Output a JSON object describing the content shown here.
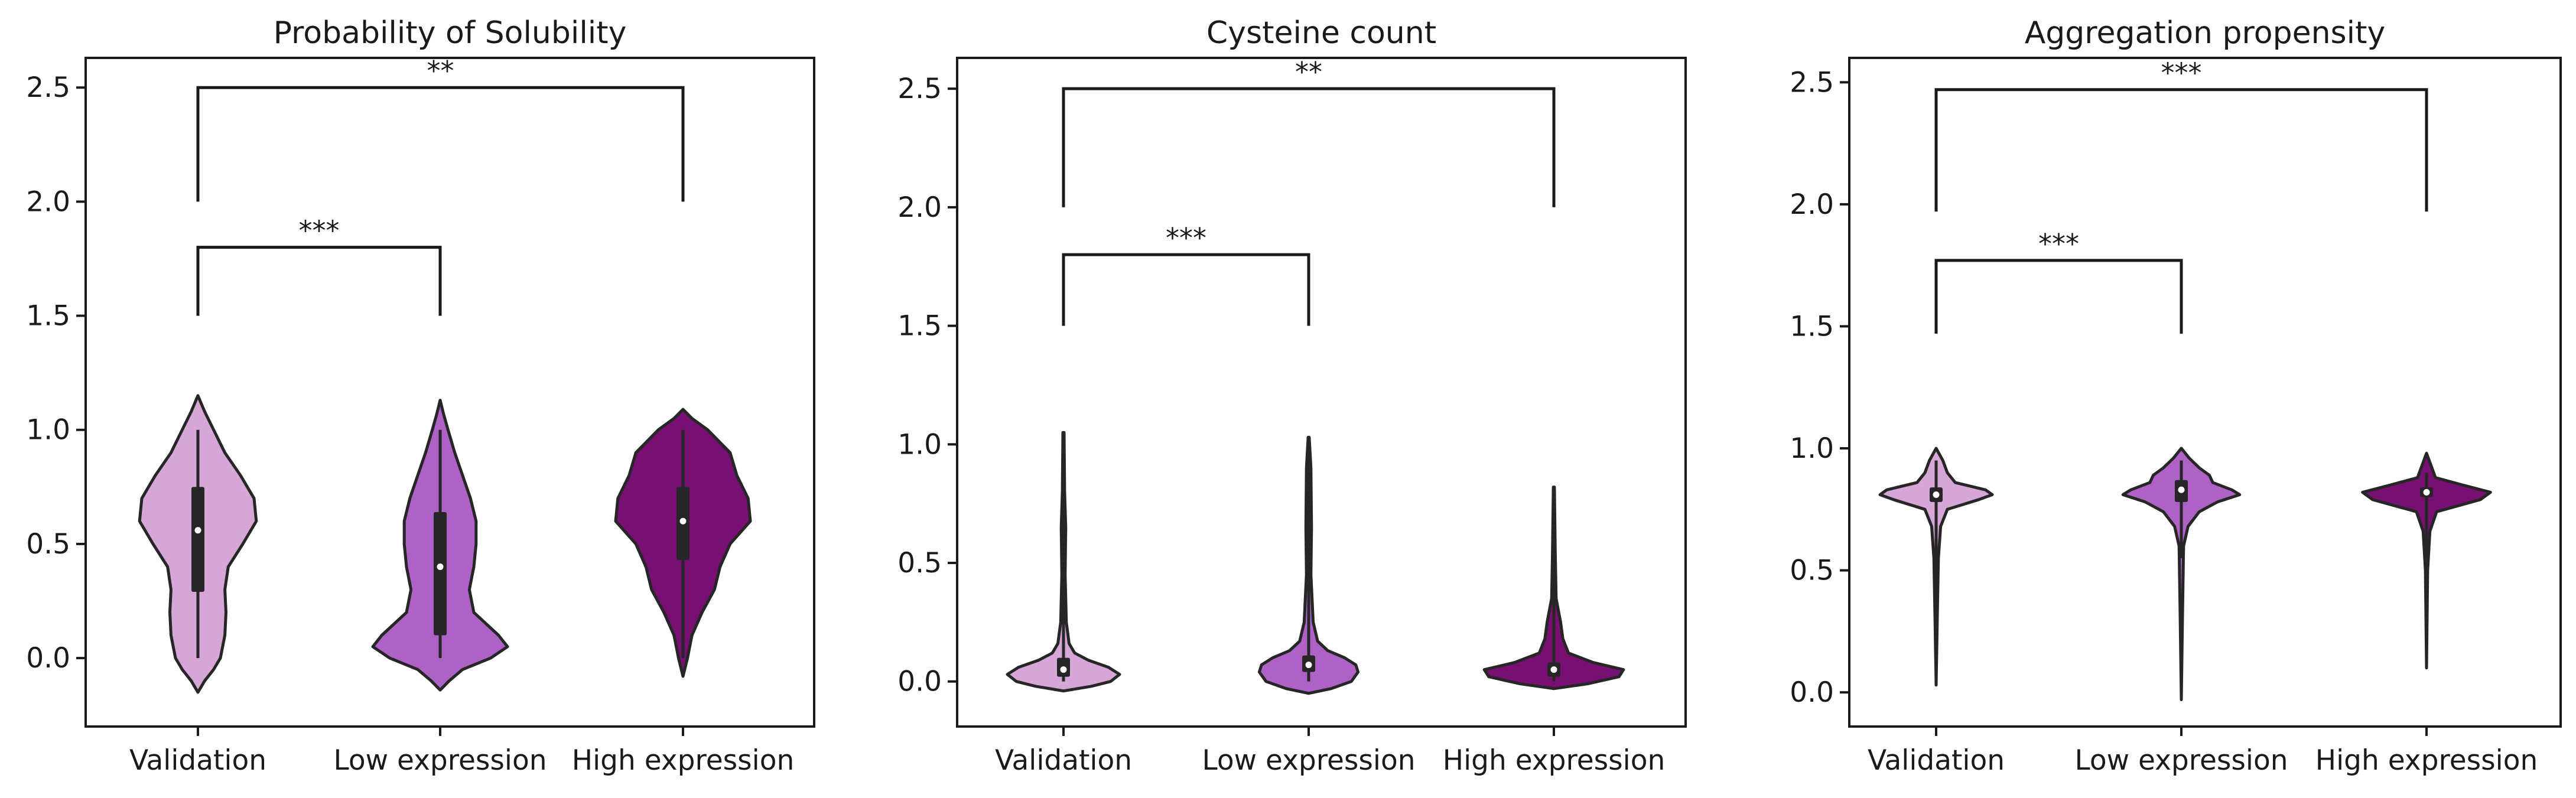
{
  "colors": {
    "validation": "#d6a6d6",
    "low_expression": "#ae62c6",
    "high_expression": "#780f72",
    "outline": "#262626",
    "box": "#262626",
    "median": "#ffffff"
  },
  "chart_data": [
    {
      "type": "violin",
      "title": "Probability of Solubility",
      "categories": [
        "Validation",
        "Low expression",
        "High expression"
      ],
      "yticks": [
        "0.0",
        "0.5",
        "1.0",
        "1.5",
        "2.0",
        "2.5"
      ],
      "ylim": [
        -0.3,
        2.63
      ],
      "grid": false,
      "series": [
        {
          "category": "Validation",
          "min": -0.15,
          "max": 1.15,
          "q1": 0.29,
          "median": 0.56,
          "q3": 0.75,
          "whisker_low": 0.0,
          "whisker_high": 1.0,
          "profile": [
            [
              -0.15,
              0.0
            ],
            [
              -0.1,
              0.06
            ],
            [
              -0.05,
              0.14
            ],
            [
              0.0,
              0.2
            ],
            [
              0.1,
              0.24
            ],
            [
              0.2,
              0.25
            ],
            [
              0.3,
              0.24
            ],
            [
              0.4,
              0.27
            ],
            [
              0.5,
              0.4
            ],
            [
              0.6,
              0.52
            ],
            [
              0.7,
              0.5
            ],
            [
              0.8,
              0.38
            ],
            [
              0.9,
              0.24
            ],
            [
              1.0,
              0.14
            ],
            [
              1.08,
              0.06
            ],
            [
              1.15,
              0.0
            ]
          ]
        },
        {
          "category": "Low expression",
          "min": -0.14,
          "max": 1.13,
          "q1": 0.1,
          "median": 0.4,
          "q3": 0.64,
          "whisker_low": 0.0,
          "whisker_high": 1.0,
          "profile": [
            [
              -0.14,
              0.0
            ],
            [
              -0.1,
              0.08
            ],
            [
              -0.05,
              0.2
            ],
            [
              0.0,
              0.45
            ],
            [
              0.05,
              0.6
            ],
            [
              0.1,
              0.52
            ],
            [
              0.2,
              0.3
            ],
            [
              0.3,
              0.26
            ],
            [
              0.4,
              0.3
            ],
            [
              0.5,
              0.32
            ],
            [
              0.6,
              0.32
            ],
            [
              0.7,
              0.27
            ],
            [
              0.8,
              0.2
            ],
            [
              0.9,
              0.13
            ],
            [
              1.0,
              0.07
            ],
            [
              1.07,
              0.03
            ],
            [
              1.13,
              0.0
            ]
          ]
        },
        {
          "category": "High expression",
          "min": -0.08,
          "max": 1.09,
          "q1": 0.43,
          "median": 0.6,
          "q3": 0.75,
          "whisker_low": 0.0,
          "whisker_high": 1.0,
          "profile": [
            [
              -0.08,
              0.0
            ],
            [
              0.0,
              0.04
            ],
            [
              0.1,
              0.08
            ],
            [
              0.2,
              0.17
            ],
            [
              0.3,
              0.28
            ],
            [
              0.4,
              0.33
            ],
            [
              0.5,
              0.42
            ],
            [
              0.6,
              0.6
            ],
            [
              0.7,
              0.58
            ],
            [
              0.8,
              0.48
            ],
            [
              0.9,
              0.42
            ],
            [
              1.0,
              0.22
            ],
            [
              1.05,
              0.08
            ],
            [
              1.09,
              0.0
            ]
          ]
        }
      ],
      "brackets": [
        {
          "from": 0,
          "to": 1,
          "y_low": 1.5,
          "y_top": 1.8,
          "label": "***"
        },
        {
          "from": 0,
          "to": 2,
          "y_low": 2.0,
          "y_top": 2.5,
          "label": "**"
        }
      ]
    },
    {
      "type": "violin",
      "title": "Cysteine count",
      "categories": [
        "Validation",
        "Low expression",
        "High expression"
      ],
      "yticks": [
        "0.0",
        "0.5",
        "1.0",
        "1.5",
        "2.0",
        "2.5"
      ],
      "ylim": [
        -0.19,
        2.63
      ],
      "grid": false,
      "series": [
        {
          "category": "Validation",
          "min": -0.04,
          "max": 1.05,
          "q1": 0.02,
          "median": 0.05,
          "q3": 0.1,
          "whisker_low": 0.0,
          "whisker_high": 1.0,
          "profile": [
            [
              -0.04,
              0.0
            ],
            [
              -0.02,
              0.25
            ],
            [
              0.0,
              0.42
            ],
            [
              0.03,
              0.5
            ],
            [
              0.06,
              0.4
            ],
            [
              0.09,
              0.22
            ],
            [
              0.12,
              0.1
            ],
            [
              0.16,
              0.05
            ],
            [
              0.25,
              0.025
            ],
            [
              0.45,
              0.015
            ],
            [
              0.65,
              0.02
            ],
            [
              0.8,
              0.01
            ],
            [
              1.05,
              0.005
            ]
          ]
        },
        {
          "category": "Low expression",
          "min": -0.05,
          "max": 1.03,
          "q1": 0.04,
          "median": 0.07,
          "q3": 0.11,
          "whisker_low": 0.0,
          "whisker_high": 1.0,
          "profile": [
            [
              -0.05,
              0.0
            ],
            [
              -0.03,
              0.2
            ],
            [
              0.0,
              0.38
            ],
            [
              0.04,
              0.44
            ],
            [
              0.07,
              0.42
            ],
            [
              0.1,
              0.32
            ],
            [
              0.13,
              0.17
            ],
            [
              0.17,
              0.08
            ],
            [
              0.25,
              0.04
            ],
            [
              0.45,
              0.02
            ],
            [
              0.65,
              0.025
            ],
            [
              0.9,
              0.02
            ],
            [
              1.03,
              0.005
            ]
          ]
        },
        {
          "category": "High expression",
          "min": -0.03,
          "max": 0.82,
          "q1": 0.02,
          "median": 0.05,
          "q3": 0.08,
          "whisker_low": 0.0,
          "whisker_high": 0.8,
          "profile": [
            [
              -0.03,
              0.0
            ],
            [
              -0.01,
              0.3
            ],
            [
              0.02,
              0.58
            ],
            [
              0.05,
              0.62
            ],
            [
              0.08,
              0.35
            ],
            [
              0.12,
              0.13
            ],
            [
              0.18,
              0.08
            ],
            [
              0.25,
              0.06
            ],
            [
              0.35,
              0.02
            ],
            [
              0.55,
              0.012
            ],
            [
              0.82,
              0.005
            ]
          ]
        }
      ],
      "brackets": [
        {
          "from": 0,
          "to": 1,
          "y_low": 1.5,
          "y_top": 1.8,
          "label": "***"
        },
        {
          "from": 0,
          "to": 2,
          "y_low": 2.0,
          "y_top": 2.5,
          "label": "**"
        }
      ]
    },
    {
      "type": "violin",
      "title": "Aggregation propensity",
      "categories": [
        "Validation",
        "Low expression",
        "High expression"
      ],
      "yticks": [
        "0.0",
        "0.5",
        "1.0",
        "1.5",
        "2.0",
        "2.5"
      ],
      "ylim": [
        -0.14,
        2.6
      ],
      "grid": false,
      "series": [
        {
          "category": "Validation",
          "min": 0.03,
          "max": 1.0,
          "q1": 0.78,
          "median": 0.81,
          "q3": 0.84,
          "whisker_low": 0.3,
          "whisker_high": 0.95,
          "profile": [
            [
              0.03,
              0.0
            ],
            [
              0.3,
              0.01
            ],
            [
              0.55,
              0.02
            ],
            [
              0.68,
              0.04
            ],
            [
              0.75,
              0.1
            ],
            [
              0.79,
              0.38
            ],
            [
              0.81,
              0.5
            ],
            [
              0.83,
              0.44
            ],
            [
              0.86,
              0.17
            ],
            [
              0.9,
              0.1
            ],
            [
              0.95,
              0.06
            ],
            [
              1.0,
              0.0
            ]
          ]
        },
        {
          "category": "Low expression",
          "min": -0.03,
          "max": 1.0,
          "q1": 0.78,
          "median": 0.83,
          "q3": 0.87,
          "whisker_low": 0.55,
          "whisker_high": 0.95,
          "profile": [
            [
              -0.03,
              0.0
            ],
            [
              0.3,
              0.01
            ],
            [
              0.6,
              0.02
            ],
            [
              0.68,
              0.06
            ],
            [
              0.74,
              0.16
            ],
            [
              0.78,
              0.32
            ],
            [
              0.81,
              0.52
            ],
            [
              0.83,
              0.45
            ],
            [
              0.86,
              0.28
            ],
            [
              0.89,
              0.25
            ],
            [
              0.92,
              0.16
            ],
            [
              0.96,
              0.07
            ],
            [
              1.0,
              0.0
            ]
          ]
        },
        {
          "category": "High expression",
          "min": 0.1,
          "max": 0.98,
          "q1": 0.8,
          "median": 0.82,
          "q3": 0.84,
          "whisker_low": 0.55,
          "whisker_high": 0.9,
          "profile": [
            [
              0.1,
              0.0
            ],
            [
              0.5,
              0.01
            ],
            [
              0.66,
              0.03
            ],
            [
              0.74,
              0.09
            ],
            [
              0.79,
              0.48
            ],
            [
              0.82,
              0.57
            ],
            [
              0.85,
              0.32
            ],
            [
              0.88,
              0.08
            ],
            [
              0.93,
              0.04
            ],
            [
              0.98,
              0.0
            ]
          ]
        }
      ],
      "brackets": [
        {
          "from": 0,
          "to": 1,
          "y_low": 1.47,
          "y_top": 1.77,
          "label": "***"
        },
        {
          "from": 0,
          "to": 2,
          "y_low": 1.97,
          "y_top": 2.47,
          "label": "***"
        }
      ]
    }
  ]
}
